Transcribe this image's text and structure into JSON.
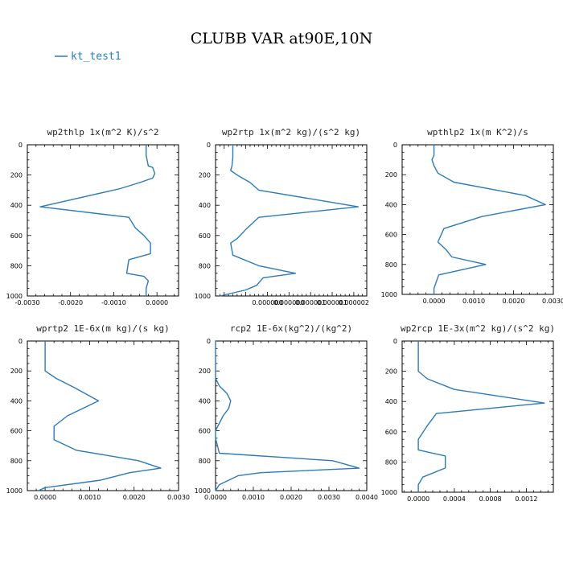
{
  "figure": {
    "title": "CLUBB VAR at90E,10N",
    "legend": {
      "label": "kt_test1",
      "color": "#2b7bb9",
      "placement": "top-left"
    }
  },
  "chart_data": [
    {
      "type": "line",
      "title": "wp2thlp  1x(m^2 K)/s^2",
      "xlabel": "",
      "ylabel": "",
      "xlim": [
        -0.003,
        0.0005
      ],
      "ylim": [
        1000,
        0
      ],
      "xticks": [
        -0.003,
        -0.002,
        -0.001,
        0.0
      ],
      "xtick_labels": [
        "-0.0030",
        "-0.0020",
        "-0.0010",
        "0.0000"
      ],
      "yticks": [
        0,
        200,
        400,
        600,
        800,
        1000
      ],
      "ytick_labels": [
        "0",
        "200",
        "400",
        "600",
        "800",
        "1000"
      ],
      "grid": false,
      "series": [
        {
          "name": "kt_test1",
          "color": "#2b7bb9",
          "points": [
            [
              -0.00025,
              0
            ],
            [
              -0.00025,
              70
            ],
            [
              -0.0002,
              140
            ],
            [
              -0.0001,
              150
            ],
            [
              -5e-05,
              190
            ],
            [
              -0.0001,
              220
            ],
            [
              -0.0004,
              250
            ],
            [
              -0.00085,
              290
            ],
            [
              -0.0027,
              410
            ],
            [
              -0.00065,
              480
            ],
            [
              -0.0005,
              550
            ],
            [
              -0.0003,
              600
            ],
            [
              -0.00015,
              650
            ],
            [
              -0.00015,
              680
            ],
            [
              -0.00015,
              720
            ],
            [
              -0.00065,
              760
            ],
            [
              -0.0007,
              850
            ],
            [
              -0.0003,
              870
            ],
            [
              -0.0002,
              900
            ],
            [
              -0.00025,
              950
            ],
            [
              -0.00025,
              1000
            ]
          ]
        }
      ]
    },
    {
      "type": "line",
      "title": "wp2rtp  1x(m^2 kg)/(s^2 kg)",
      "xlabel": "",
      "ylabel": "",
      "xlim": [
        -1.2e-06,
        2.3e-06
      ],
      "ylim": [
        1000,
        0
      ],
      "xticks": [
        0.0,
        5e-07,
        1e-06,
        1.5e-06,
        2e-06
      ],
      "xtick_labels": [
        "0.000000",
        "0.000000",
        "0.000001",
        "0.000001",
        "0.000002"
      ],
      "yticks": [
        0,
        200,
        400,
        600,
        800,
        1000
      ],
      "ytick_labels": [
        "0",
        "200",
        "400",
        "600",
        "800",
        "1000"
      ],
      "grid": false,
      "series": [
        {
          "name": "kt_test1",
          "color": "#2b7bb9",
          "points": [
            [
              -8e-07,
              0
            ],
            [
              -8e-07,
              80
            ],
            [
              -8.2e-07,
              140
            ],
            [
              -8.5e-07,
              170
            ],
            [
              -7e-07,
              200
            ],
            [
              -4e-07,
              250
            ],
            [
              -2e-07,
              300
            ],
            [
              2.1e-06,
              410
            ],
            [
              -2e-07,
              480
            ],
            [
              -5e-07,
              560
            ],
            [
              -7e-07,
              620
            ],
            [
              -8.5e-07,
              650
            ],
            [
              -8e-07,
              730
            ],
            [
              -2e-07,
              800
            ],
            [
              6.5e-07,
              850
            ],
            [
              -1e-07,
              880
            ],
            [
              -2.5e-07,
              930
            ],
            [
              -5e-07,
              960
            ],
            [
              -1.1e-06,
              1000
            ]
          ]
        }
      ]
    },
    {
      "type": "line",
      "title": "wpthlp2  1x(m K^2)/s",
      "xlabel": "",
      "ylabel": "",
      "xlim": [
        -0.0008,
        0.003
      ],
      "ylim": [
        1000,
        0
      ],
      "xticks": [
        0.0,
        0.001,
        0.002,
        0.003
      ],
      "xtick_labels": [
        "0.0000",
        "0.0010",
        "0.0020",
        "0.0030"
      ],
      "yticks": [
        0,
        200,
        400,
        600,
        800,
        1000
      ],
      "ytick_labels": [
        "0",
        "200",
        "400",
        "600",
        "800",
        "1000"
      ],
      "grid": false,
      "series": [
        {
          "name": "kt_test1",
          "color": "#2b7bb9",
          "points": [
            [
              0.0,
              0
            ],
            [
              0.0,
              70
            ],
            [
              -5e-05,
              100
            ],
            [
              0.0,
              140
            ],
            [
              0.0001,
              190
            ],
            [
              0.0005,
              250
            ],
            [
              0.0023,
              340
            ],
            [
              0.0028,
              400
            ],
            [
              0.0012,
              480
            ],
            [
              0.00025,
              560
            ],
            [
              0.0001,
              650
            ],
            [
              0.0003,
              700
            ],
            [
              0.00045,
              750
            ],
            [
              0.0013,
              800
            ],
            [
              0.00012,
              870
            ],
            [
              8e-05,
              900
            ],
            [
              0.0,
              960
            ],
            [
              0.0,
              1000
            ]
          ]
        }
      ]
    },
    {
      "type": "line",
      "title": "wprtp2  1E-6x(m kg)/(s kg)",
      "xlabel": "",
      "ylabel": "",
      "xlim": [
        -0.0004,
        0.003
      ],
      "ylim": [
        1000,
        0
      ],
      "xticks": [
        0.0,
        0.001,
        0.002,
        0.003
      ],
      "xtick_labels": [
        "0.0000",
        "0.0010",
        "0.0020",
        "0.0030"
      ],
      "yticks": [
        0,
        200,
        400,
        600,
        800,
        1000
      ],
      "ytick_labels": [
        "0",
        "200",
        "400",
        "600",
        "800",
        "1000"
      ],
      "grid": false,
      "series": [
        {
          "name": "kt_test1",
          "color": "#2b7bb9",
          "points": [
            [
              0.0,
              0
            ],
            [
              0.0,
              150
            ],
            [
              0.0,
              200
            ],
            [
              0.00025,
              250
            ],
            [
              0.00065,
              310
            ],
            [
              0.0012,
              400
            ],
            [
              0.0005,
              500
            ],
            [
              0.0002,
              570
            ],
            [
              0.0002,
              620
            ],
            [
              0.0002,
              660
            ],
            [
              0.0007,
              730
            ],
            [
              0.0021,
              800
            ],
            [
              0.0026,
              850
            ],
            [
              0.0019,
              880
            ],
            [
              0.00125,
              930
            ],
            [
              0.0,
              980
            ],
            [
              -0.00015,
              1000
            ]
          ]
        }
      ]
    },
    {
      "type": "line",
      "title": "rcp2  1E-6x(kg^2)/(kg^2)",
      "xlabel": "",
      "ylabel": "",
      "xlim": [
        0.0,
        0.004
      ],
      "ylim": [
        1000,
        0
      ],
      "xticks": [
        0.0,
        0.001,
        0.002,
        0.003,
        0.004
      ],
      "xtick_labels": [
        "0.0000",
        "0.0010",
        "0.0020",
        "0.0030",
        "0.0040"
      ],
      "yticks": [
        0,
        200,
        400,
        600,
        800,
        1000
      ],
      "ytick_labels": [
        "0",
        "200",
        "400",
        "600",
        "800",
        "1000"
      ],
      "grid": false,
      "series": [
        {
          "name": "kt_test1",
          "color": "#2b7bb9",
          "points": [
            [
              0.0,
              0
            ],
            [
              0.0,
              200
            ],
            [
              0.0,
              250
            ],
            [
              0.0001,
              300
            ],
            [
              0.0003,
              350
            ],
            [
              0.0004,
              400
            ],
            [
              0.00035,
              450
            ],
            [
              0.0002,
              500
            ],
            [
              0.0,
              600
            ],
            [
              0.0,
              650
            ],
            [
              0.0001,
              750
            ],
            [
              0.0031,
              800
            ],
            [
              0.0038,
              850
            ],
            [
              0.0012,
              880
            ],
            [
              0.0006,
              900
            ],
            [
              0.0001,
              960
            ],
            [
              0.0,
              1000
            ]
          ]
        }
      ]
    },
    {
      "type": "line",
      "title": "wp2rcp  1E-3x(m^2 kg)/(s^2 kg)",
      "xlabel": "",
      "ylabel": "",
      "xlim": [
        -0.00018,
        0.0015
      ],
      "ylim": [
        1000,
        0
      ],
      "xticks": [
        0.0,
        0.0004,
        0.0008,
        0.0012
      ],
      "xtick_labels": [
        "0.0000",
        "0.0004",
        "0.0008",
        "0.0012"
      ],
      "yticks": [
        0,
        200,
        400,
        600,
        800,
        1000
      ],
      "ytick_labels": [
        "0",
        "200",
        "400",
        "600",
        "800",
        "1000"
      ],
      "grid": false,
      "series": [
        {
          "name": "kt_test1",
          "color": "#2b7bb9",
          "points": [
            [
              0.0,
              0
            ],
            [
              0.0,
              150
            ],
            [
              0.0,
              200
            ],
            [
              0.0001,
              250
            ],
            [
              0.0004,
              320
            ],
            [
              0.0014,
              410
            ],
            [
              0.0002,
              480
            ],
            [
              0.0001,
              560
            ],
            [
              0.0,
              650
            ],
            [
              0.0,
              720
            ],
            [
              0.0003,
              760
            ],
            [
              0.0003,
              800
            ],
            [
              0.0003,
              840
            ],
            [
              5e-05,
              900
            ],
            [
              0.0,
              950
            ],
            [
              0.0,
              1000
            ]
          ]
        }
      ]
    }
  ]
}
